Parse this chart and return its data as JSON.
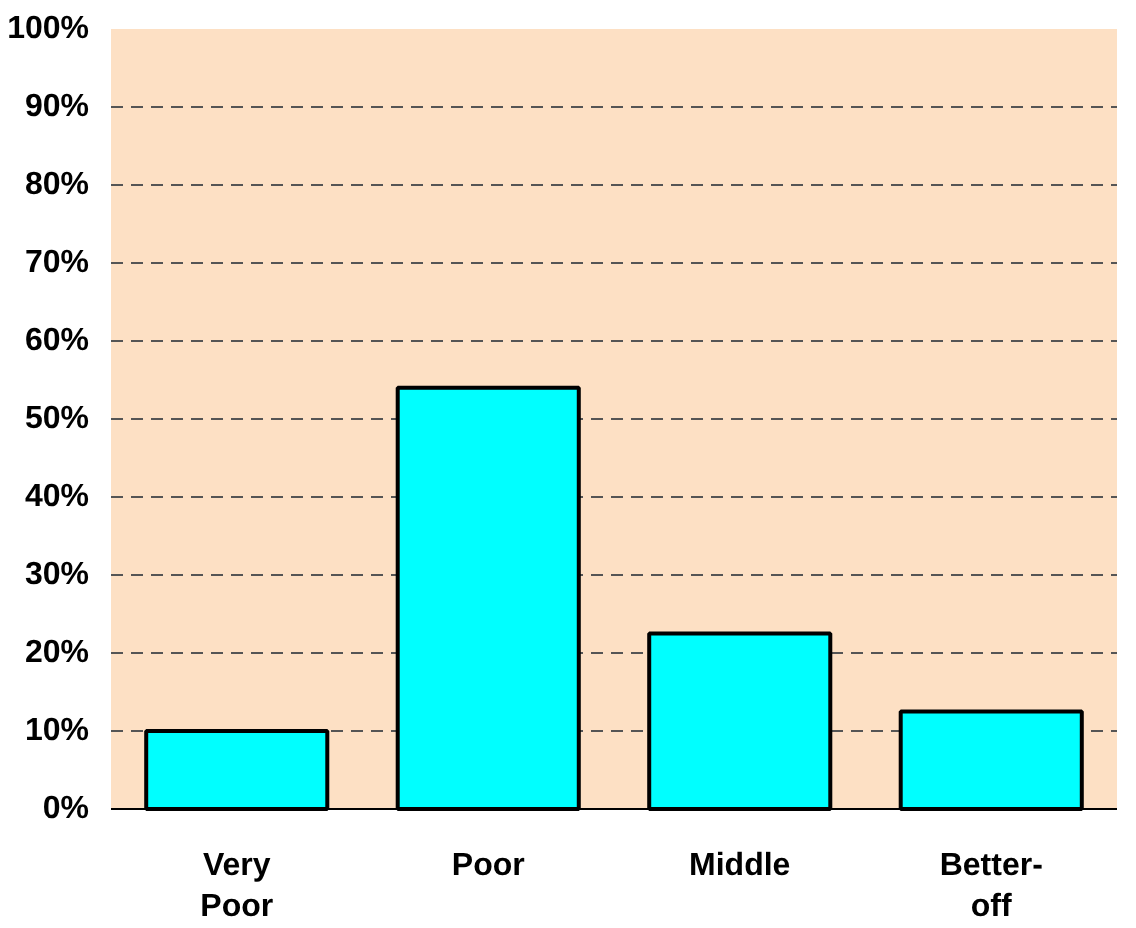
{
  "chart_data": {
    "type": "bar",
    "categories": [
      "Very Poor",
      "Poor",
      "Middle",
      "Better-off"
    ],
    "values": [
      10,
      54,
      22.5,
      12.5
    ],
    "color": "#00ffff",
    "ylim": [
      0,
      100
    ],
    "yticks": [
      {
        "value": 0,
        "label": "0%"
      },
      {
        "value": 10,
        "label": "10%"
      },
      {
        "value": 20,
        "label": "20%"
      },
      {
        "value": 30,
        "label": "30%"
      },
      {
        "value": 40,
        "label": "40%"
      },
      {
        "value": 50,
        "label": "50%"
      },
      {
        "value": 60,
        "label": "60%"
      },
      {
        "value": 70,
        "label": "70%"
      },
      {
        "value": 80,
        "label": "80%"
      },
      {
        "value": 90,
        "label": "90%"
      },
      {
        "value": 100,
        "label": "100%"
      }
    ],
    "grid": "y"
  }
}
